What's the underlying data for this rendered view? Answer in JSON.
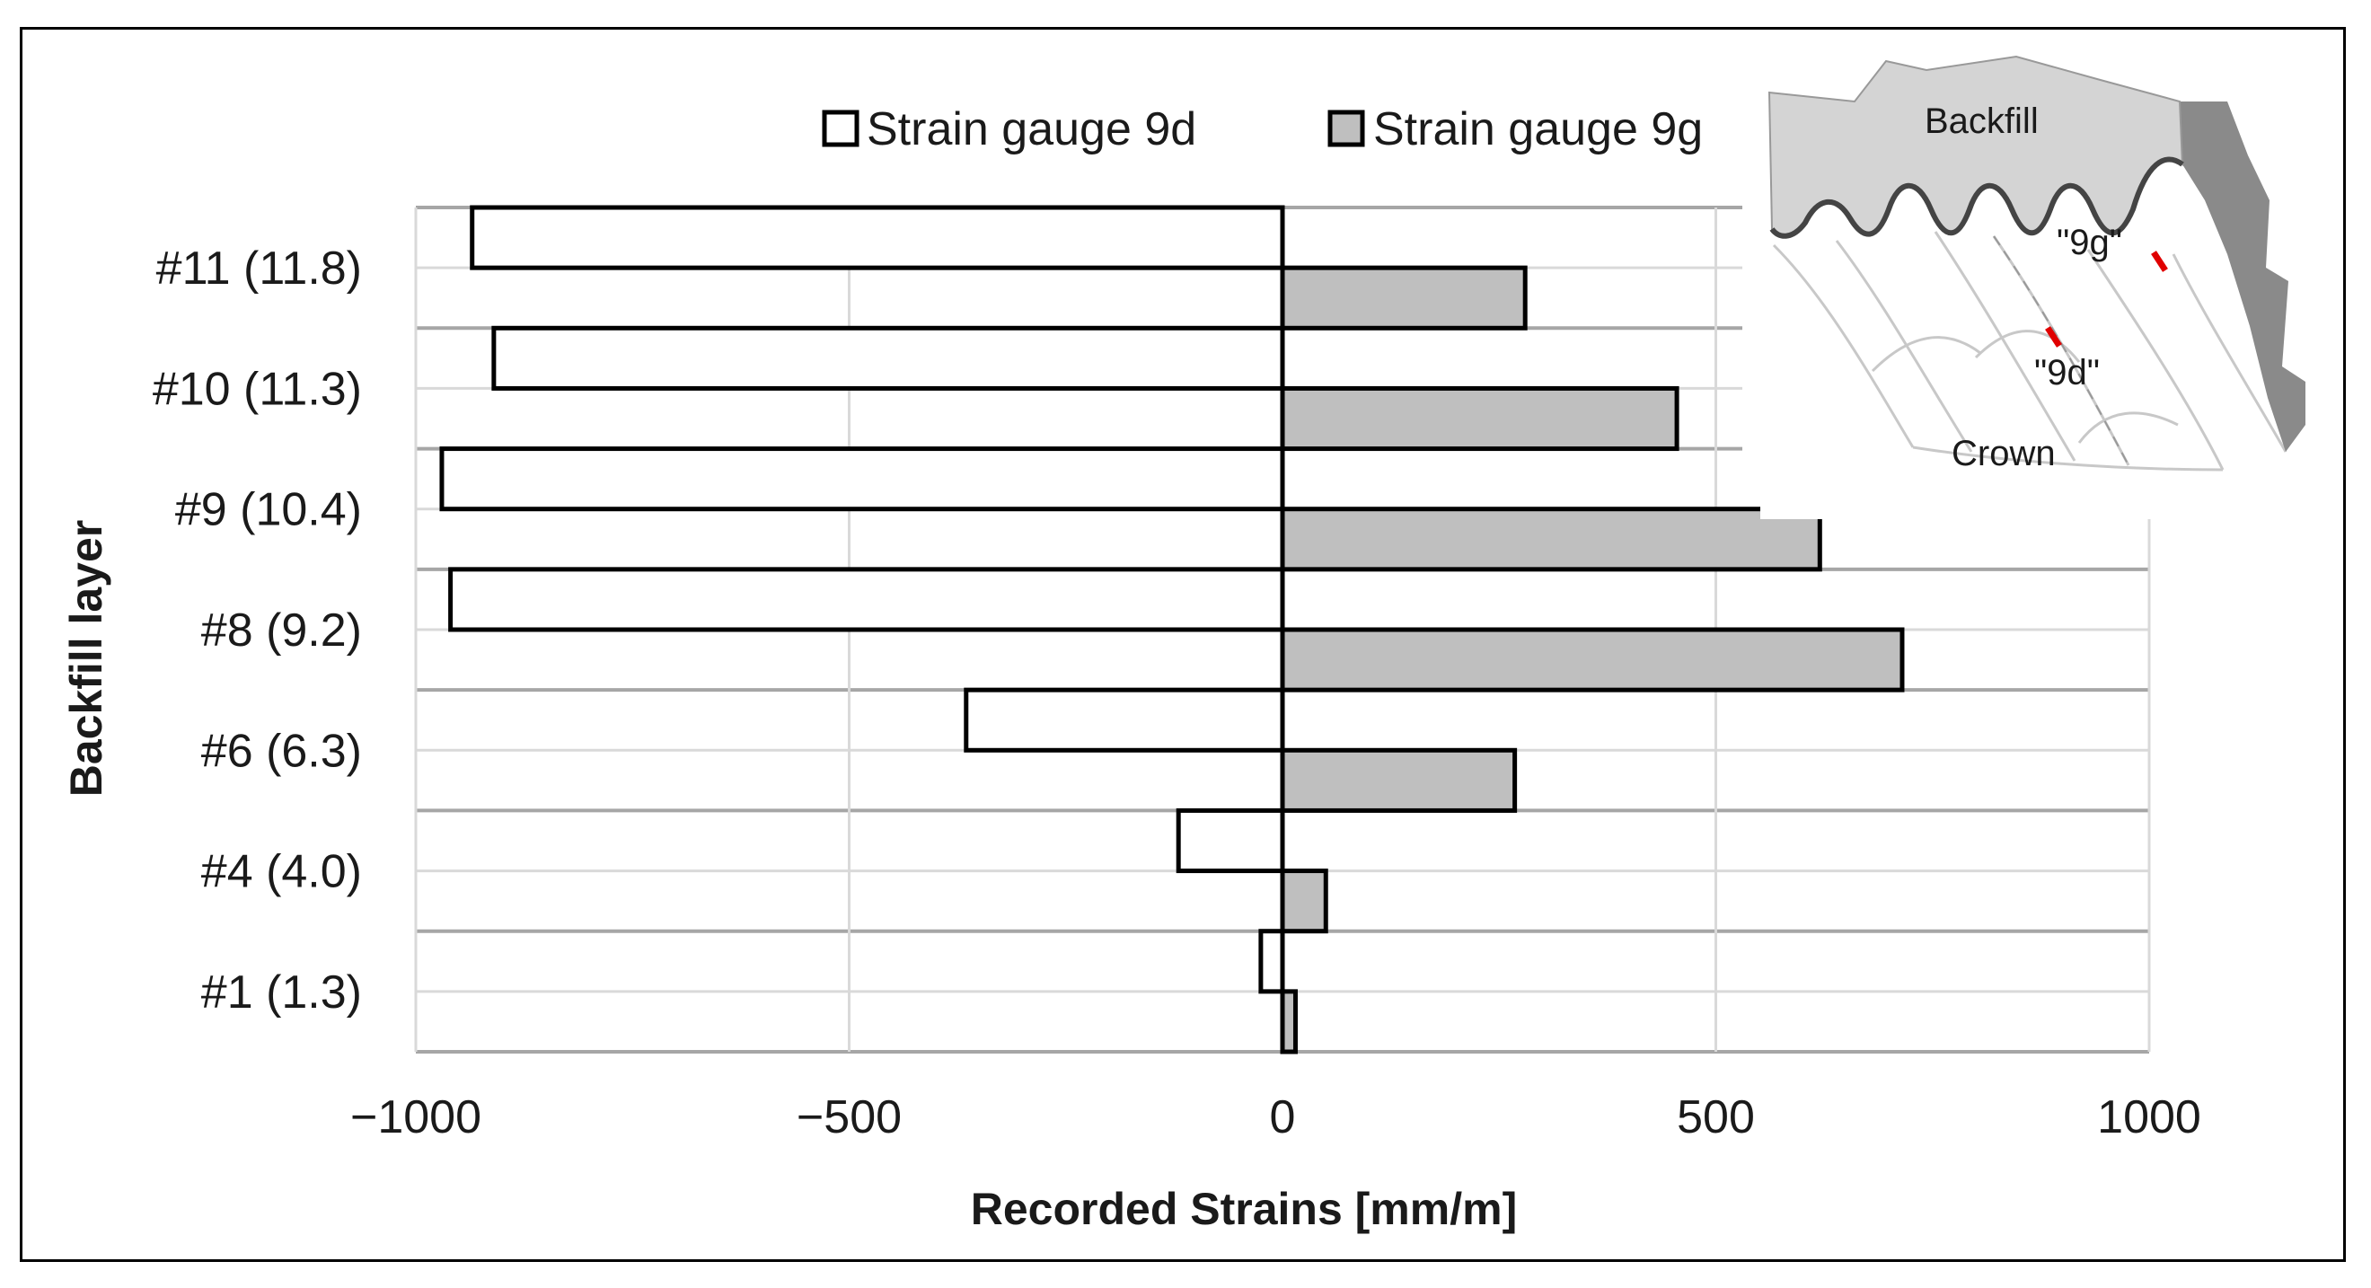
{
  "chart_data": {
    "type": "bar",
    "orientation": "horizontal",
    "categories": [
      "#11 (11.8)",
      "#10 (11.3)",
      "#9 (10.4)",
      "#8 (9.2)",
      "#6 (6.3)",
      "#4 (4.0)",
      "#1 (1.3)"
    ],
    "series": [
      {
        "name": "Strain gauge 9d",
        "values": [
          -935,
          -910,
          -970,
          -960,
          -365,
          -120,
          -25
        ],
        "color": "#ffffff"
      },
      {
        "name": "Strain gauge 9g",
        "values": [
          280,
          455,
          620,
          715,
          268,
          50,
          15
        ],
        "color": "#bfbfbf"
      }
    ],
    "xlabel": "Recorded Strains [mm/m]",
    "ylabel": "Backfill layer",
    "xlim": [
      -1000,
      1000
    ],
    "xticks": [
      "−1000",
      "−500",
      "0",
      "500",
      "1000"
    ],
    "grid": true,
    "legend_position": "top"
  },
  "inset": {
    "label_backfill": "Backfill",
    "label_crown": "Crown",
    "label_9g": "\"9g\"",
    "label_9d": "\"9d\""
  }
}
